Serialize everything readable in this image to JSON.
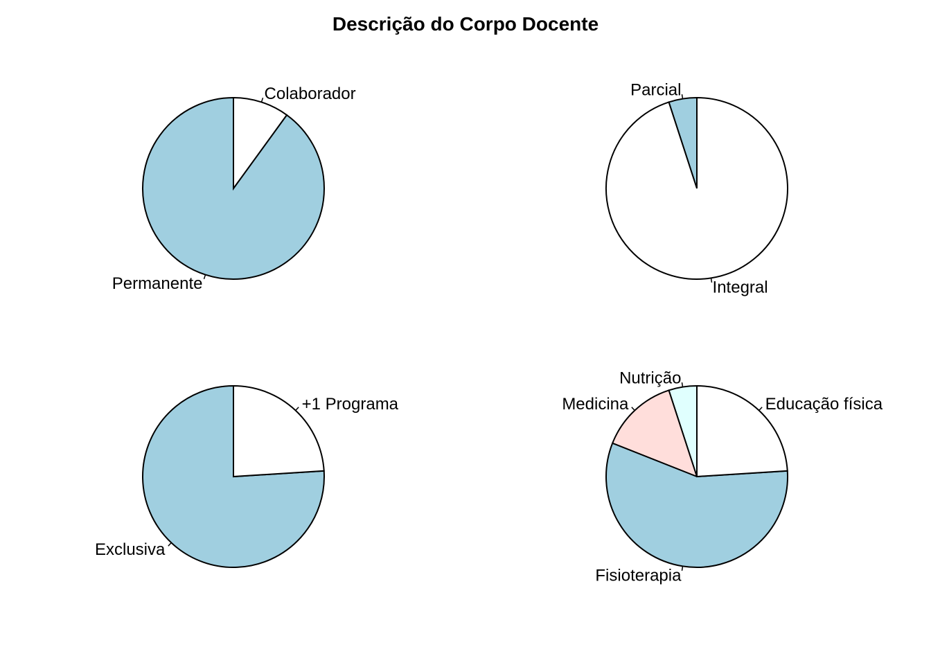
{
  "title": "Descrição do Corpo Docente",
  "chart_data": [
    {
      "type": "pie",
      "title": "",
      "slices": [
        {
          "label": "Permanente",
          "value": 90,
          "color": "#a0cfe0"
        },
        {
          "label": "Colaborador",
          "value": 10,
          "color": "#ffffff"
        }
      ]
    },
    {
      "type": "pie",
      "title": "",
      "slices": [
        {
          "label": "Parcial",
          "value": 5,
          "color": "#a0cfe0"
        },
        {
          "label": "Integral",
          "value": 95,
          "color": "#ffffff"
        }
      ]
    },
    {
      "type": "pie",
      "title": "",
      "slices": [
        {
          "label": "Exclusiva",
          "value": 76,
          "color": "#a0cfe0"
        },
        {
          "label": "+1 Programa",
          "value": 24,
          "color": "#ffffff"
        }
      ]
    },
    {
      "type": "pie",
      "title": "",
      "slices": [
        {
          "label": "Nutrição",
          "value": 5,
          "color": "#e0fffe"
        },
        {
          "label": "Medicina",
          "value": 14,
          "color": "#ffdedb"
        },
        {
          "label": "Fisioterapia",
          "value": 57,
          "color": "#a0cfe0"
        },
        {
          "label": "Educação física",
          "value": 24,
          "color": "#ffffff"
        }
      ]
    }
  ]
}
